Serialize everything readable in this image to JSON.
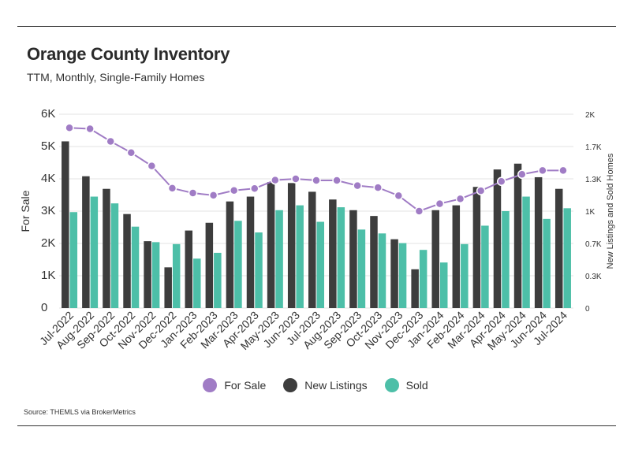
{
  "header": {
    "title": "Orange County Inventory",
    "subtitle": "TTM, Monthly, Single-Family Homes"
  },
  "footer": {
    "source": "Source:  THEMLS via BrokerMetrics"
  },
  "colors": {
    "for_sale": "#a07cc5",
    "new_listings": "#3d3d3d",
    "sold": "#4dbfa8"
  },
  "legend": [
    {
      "label": "For Sale",
      "color": "#a07cc5"
    },
    {
      "label": "New Listings",
      "color": "#3d3d3d"
    },
    {
      "label": "Sold",
      "color": "#4dbfa8"
    }
  ],
  "chart_data": {
    "type": "bar",
    "categories": [
      "Jul-2022",
      "Aug-2022",
      "Sep-2022",
      "Oct-2022",
      "Nov-2022",
      "Dec-2022",
      "Jan-2023",
      "Feb-2023",
      "Mar-2023",
      "Apr-2023",
      "May-2023",
      "Jun-2023",
      "Jul-2023",
      "Aug-2023",
      "Sep-2023",
      "Oct-2023",
      "Nov-2023",
      "Dec-2023",
      "Jan-2024",
      "Feb-2024",
      "Mar-2024",
      "Apr-2024",
      "May-2024",
      "Jun-2024",
      "Jul-2024"
    ],
    "ylabel": "For Sale",
    "y2label": "New Listings and Sold Homes",
    "ylim": [
      0,
      6000
    ],
    "y2lim": [
      0,
      2000
    ],
    "yticks": [
      "0",
      "1K",
      "2K",
      "3K",
      "4K",
      "5K",
      "6K"
    ],
    "y2ticks": [
      "0",
      "0.3K",
      "0.7K",
      "1K",
      "1.3K",
      "1.7K",
      "2K"
    ],
    "grid": true,
    "legend_position": "bottom",
    "series": [
      {
        "name": "For Sale",
        "type": "line",
        "axis": "left",
        "values": [
          5580,
          5550,
          5160,
          4810,
          4400,
          3710,
          3560,
          3490,
          3640,
          3700,
          3960,
          4000,
          3950,
          3950,
          3790,
          3730,
          3480,
          3000,
          3230,
          3380,
          3630,
          3920,
          4140,
          4260,
          4260
        ]
      },
      {
        "name": "New Listings",
        "type": "bar",
        "axis": "right",
        "values": [
          1720,
          1360,
          1230,
          970,
          690,
          420,
          800,
          880,
          1100,
          1150,
          1300,
          1290,
          1200,
          1120,
          1010,
          950,
          710,
          400,
          1010,
          1060,
          1250,
          1430,
          1490,
          1350,
          1230
        ]
      },
      {
        "name": "Sold",
        "type": "bar",
        "axis": "right",
        "values": [
          990,
          1150,
          1080,
          840,
          680,
          660,
          510,
          570,
          900,
          780,
          1010,
          1060,
          890,
          1040,
          810,
          770,
          670,
          600,
          470,
          660,
          850,
          1000,
          1150,
          920,
          1030
        ]
      }
    ]
  }
}
